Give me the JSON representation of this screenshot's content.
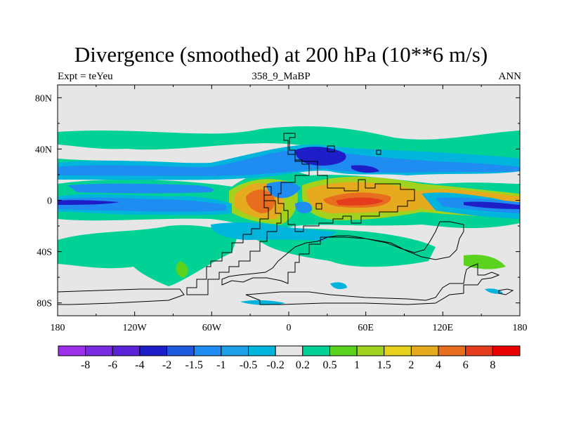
{
  "chart_data": {
    "type": "heatmap",
    "title": "Divergence (smoothed) at 200 hPa (10**6 m/s)",
    "left_label": "Expt = teYeu",
    "center_label": "358_9_MaBP",
    "right_label": "ANN",
    "x_ticks": [
      "180",
      "120W",
      "60W",
      "0",
      "60E",
      "120E",
      "180"
    ],
    "y_ticks": [
      "80N",
      "40N",
      "0",
      "40S",
      "80S"
    ],
    "xlim": [
      -180,
      180
    ],
    "ylim": [
      -90,
      90
    ],
    "colorbar_labels": [
      "-8",
      "-6",
      "-4",
      "-2",
      "-1.5",
      "-1",
      "-0.5",
      "-0.2",
      "0.2",
      "0.5",
      "1",
      "1.5",
      "2",
      "4",
      "6",
      "8"
    ],
    "colorbar_colors": [
      "#9b30e8",
      "#7a2ae0",
      "#5a23d8",
      "#1e1ec8",
      "#1e5adc",
      "#1e8cf0",
      "#1ea0e6",
      "#00b4dc",
      "#e6e6e6",
      "#00d296",
      "#5ad21e",
      "#a0d21e",
      "#e6d21e",
      "#e6aa1e",
      "#e66e1e",
      "#e63c1e",
      "#e60000"
    ],
    "background_value_color": "#e6e6e6"
  }
}
